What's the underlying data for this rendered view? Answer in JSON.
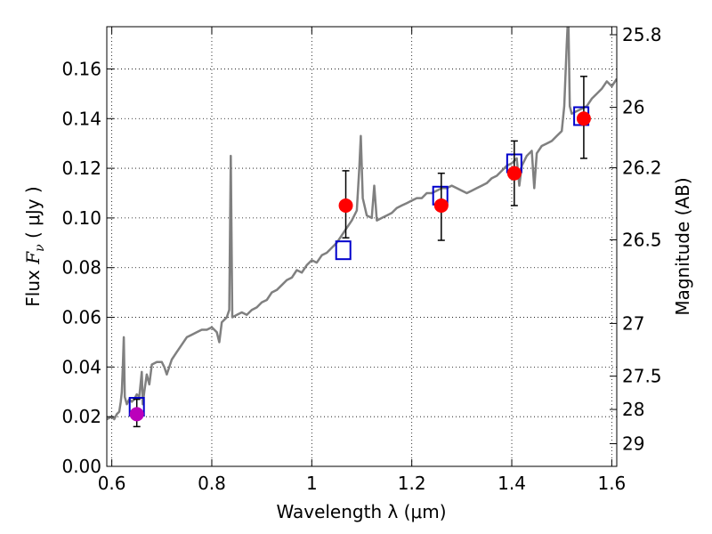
{
  "chart_data": {
    "type": "line",
    "xlabel": "Wavelength  λ (μm)",
    "ylabel_left": {
      "prefix": "Flux ",
      "symbol": "F",
      "subscript": "ν",
      "unit": " ( μJy )"
    },
    "ylabel_right": "Magnitude (AB)",
    "xlim": [
      0.59,
      1.61
    ],
    "ylim": [
      0.0,
      0.177
    ],
    "x_ticks": [
      0.6,
      0.8,
      1.0,
      1.2,
      1.4,
      1.6
    ],
    "x_tick_labels": [
      "0.6",
      "0.8",
      "1",
      "1.2",
      "1.4",
      "1.6"
    ],
    "y_ticks": [
      0.0,
      0.02,
      0.04,
      0.06,
      0.08,
      0.1,
      0.12,
      0.14,
      0.16
    ],
    "y_tick_labels": [
      "0.00",
      "0.02",
      "0.04",
      "0.06",
      "0.08",
      "0.10",
      "0.12",
      "0.14",
      "0.16"
    ],
    "right_ticks": [
      {
        "mag": 25.8,
        "label": "25.8"
      },
      {
        "mag": 26.0,
        "label": "26"
      },
      {
        "mag": 26.2,
        "label": "26.2"
      },
      {
        "mag": 26.5,
        "label": "26.5"
      },
      {
        "mag": 27.0,
        "label": "27"
      },
      {
        "mag": 27.5,
        "label": "27.5"
      },
      {
        "mag": 28.0,
        "label": "28"
      },
      {
        "mag": 29.0,
        "label": "29"
      }
    ],
    "grid": true,
    "colors": {
      "spectrum": "#808080",
      "model_box": "#0000cc",
      "observed": "#ff0000",
      "observed_special": "#bb00bb",
      "errorbar": "#000000"
    },
    "spectrum": [
      [
        0.59,
        0.019
      ],
      [
        0.6,
        0.02
      ],
      [
        0.605,
        0.019
      ],
      [
        0.61,
        0.021
      ],
      [
        0.615,
        0.022
      ],
      [
        0.618,
        0.026
      ],
      [
        0.62,
        0.03
      ],
      [
        0.622,
        0.04
      ],
      [
        0.624,
        0.052
      ],
      [
        0.626,
        0.028
      ],
      [
        0.63,
        0.025
      ],
      [
        0.635,
        0.027
      ],
      [
        0.64,
        0.026
      ],
      [
        0.645,
        0.027
      ],
      [
        0.65,
        0.029
      ],
      [
        0.655,
        0.028
      ],
      [
        0.66,
        0.038
      ],
      [
        0.662,
        0.025
      ],
      [
        0.665,
        0.03
      ],
      [
        0.67,
        0.037
      ],
      [
        0.675,
        0.033
      ],
      [
        0.68,
        0.041
      ],
      [
        0.69,
        0.042
      ],
      [
        0.7,
        0.042
      ],
      [
        0.705,
        0.04
      ],
      [
        0.71,
        0.037
      ],
      [
        0.715,
        0.04
      ],
      [
        0.72,
        0.043
      ],
      [
        0.73,
        0.046
      ],
      [
        0.74,
        0.049
      ],
      [
        0.75,
        0.052
      ],
      [
        0.76,
        0.053
      ],
      [
        0.77,
        0.054
      ],
      [
        0.78,
        0.055
      ],
      [
        0.79,
        0.055
      ],
      [
        0.8,
        0.056
      ],
      [
        0.81,
        0.054
      ],
      [
        0.815,
        0.05
      ],
      [
        0.82,
        0.058
      ],
      [
        0.83,
        0.06
      ],
      [
        0.835,
        0.063
      ],
      [
        0.838,
        0.125
      ],
      [
        0.841,
        0.06
      ],
      [
        0.85,
        0.061
      ],
      [
        0.86,
        0.062
      ],
      [
        0.87,
        0.061
      ],
      [
        0.88,
        0.063
      ],
      [
        0.89,
        0.064
      ],
      [
        0.9,
        0.066
      ],
      [
        0.91,
        0.067
      ],
      [
        0.92,
        0.07
      ],
      [
        0.93,
        0.071
      ],
      [
        0.94,
        0.073
      ],
      [
        0.95,
        0.075
      ],
      [
        0.96,
        0.076
      ],
      [
        0.97,
        0.079
      ],
      [
        0.98,
        0.078
      ],
      [
        0.99,
        0.081
      ],
      [
        1.0,
        0.083
      ],
      [
        1.01,
        0.082
      ],
      [
        1.02,
        0.085
      ],
      [
        1.03,
        0.086
      ],
      [
        1.04,
        0.088
      ],
      [
        1.05,
        0.09
      ],
      [
        1.06,
        0.093
      ],
      [
        1.07,
        0.096
      ],
      [
        1.08,
        0.099
      ],
      [
        1.09,
        0.103
      ],
      [
        1.095,
        0.12
      ],
      [
        1.098,
        0.133
      ],
      [
        1.102,
        0.108
      ],
      [
        1.11,
        0.101
      ],
      [
        1.12,
        0.1
      ],
      [
        1.125,
        0.113
      ],
      [
        1.13,
        0.099
      ],
      [
        1.14,
        0.1
      ],
      [
        1.15,
        0.101
      ],
      [
        1.16,
        0.102
      ],
      [
        1.17,
        0.104
      ],
      [
        1.18,
        0.105
      ],
      [
        1.19,
        0.106
      ],
      [
        1.2,
        0.107
      ],
      [
        1.21,
        0.108
      ],
      [
        1.22,
        0.108
      ],
      [
        1.23,
        0.11
      ],
      [
        1.24,
        0.11
      ],
      [
        1.25,
        0.111
      ],
      [
        1.26,
        0.112
      ],
      [
        1.27,
        0.112
      ],
      [
        1.28,
        0.113
      ],
      [
        1.29,
        0.112
      ],
      [
        1.3,
        0.111
      ],
      [
        1.31,
        0.11
      ],
      [
        1.32,
        0.111
      ],
      [
        1.33,
        0.112
      ],
      [
        1.34,
        0.113
      ],
      [
        1.35,
        0.114
      ],
      [
        1.36,
        0.116
      ],
      [
        1.37,
        0.117
      ],
      [
        1.38,
        0.119
      ],
      [
        1.39,
        0.121
      ],
      [
        1.4,
        0.122
      ],
      [
        1.41,
        0.124
      ],
      [
        1.415,
        0.113
      ],
      [
        1.42,
        0.121
      ],
      [
        1.43,
        0.125
      ],
      [
        1.44,
        0.127
      ],
      [
        1.445,
        0.112
      ],
      [
        1.45,
        0.126
      ],
      [
        1.46,
        0.129
      ],
      [
        1.47,
        0.13
      ],
      [
        1.48,
        0.131
      ],
      [
        1.49,
        0.133
      ],
      [
        1.5,
        0.135
      ],
      [
        1.505,
        0.145
      ],
      [
        1.51,
        0.17
      ],
      [
        1.513,
        0.183
      ],
      [
        1.516,
        0.145
      ],
      [
        1.52,
        0.142
      ],
      [
        1.53,
        0.143
      ],
      [
        1.54,
        0.144
      ],
      [
        1.55,
        0.145
      ],
      [
        1.56,
        0.148
      ],
      [
        1.57,
        0.15
      ],
      [
        1.58,
        0.152
      ],
      [
        1.59,
        0.155
      ],
      [
        1.6,
        0.153
      ],
      [
        1.61,
        0.156
      ]
    ],
    "model_points": [
      {
        "x": 0.65,
        "y": 0.024
      },
      {
        "x": 1.063,
        "y": 0.087
      },
      {
        "x": 1.257,
        "y": 0.109
      },
      {
        "x": 1.405,
        "y": 0.122
      },
      {
        "x": 1.539,
        "y": 0.141
      }
    ],
    "observed_points": [
      {
        "x": 0.65,
        "y": 0.021,
        "ylo": 0.016,
        "yhi": 0.027,
        "color": "#bb00bb"
      },
      {
        "x": 1.068,
        "y": 0.105,
        "ylo": 0.092,
        "yhi": 0.119,
        "color": "#ff0000"
      },
      {
        "x": 1.259,
        "y": 0.105,
        "ylo": 0.091,
        "yhi": 0.118,
        "color": "#ff0000"
      },
      {
        "x": 1.405,
        "y": 0.118,
        "ylo": 0.105,
        "yhi": 0.131,
        "color": "#ff0000"
      },
      {
        "x": 1.544,
        "y": 0.14,
        "ylo": 0.124,
        "yhi": 0.157,
        "color": "#ff0000"
      }
    ]
  }
}
